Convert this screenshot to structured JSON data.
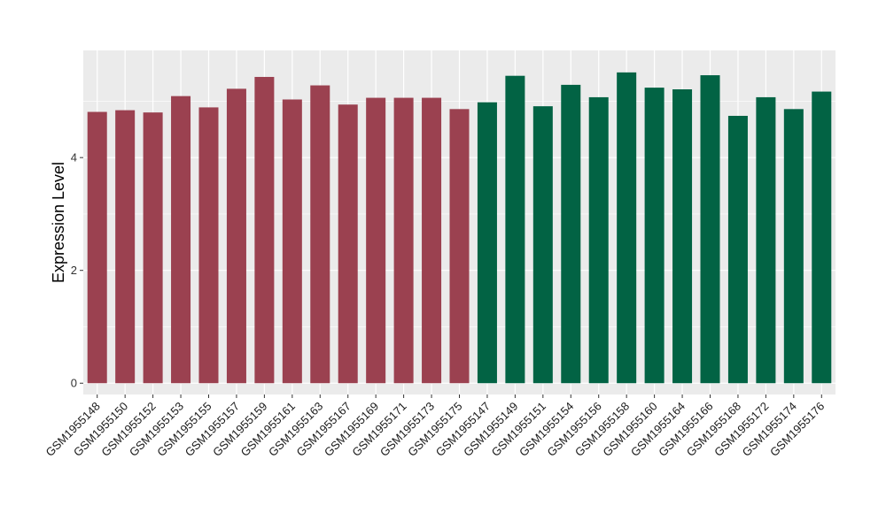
{
  "chart_data": {
    "type": "bar",
    "ylabel": "Expression Level",
    "xlabel": "",
    "ylim": [
      -0.2,
      5.9
    ],
    "yticks": [
      0,
      2,
      4
    ],
    "grid": true,
    "legend": "none",
    "categories": [
      "GSM1955148",
      "GSM1955150",
      "GSM1955152",
      "GSM1955153",
      "GSM1955155",
      "GSM1955157",
      "GSM1955159",
      "GSM1955161",
      "GSM1955163",
      "GSM1955167",
      "GSM1955169",
      "GSM1955171",
      "GSM1955173",
      "GSM1955175",
      "GSM1955147",
      "GSM1955149",
      "GSM1955151",
      "GSM1955154",
      "GSM1955156",
      "GSM1955158",
      "GSM1955160",
      "GSM1955164",
      "GSM1955166",
      "GSM1955168",
      "GSM1955172",
      "GSM1955174",
      "GSM1955176"
    ],
    "values": [
      4.81,
      4.84,
      4.8,
      5.09,
      4.89,
      5.22,
      5.43,
      5.03,
      5.28,
      4.94,
      5.06,
      5.06,
      5.06,
      4.86,
      4.98,
      5.45,
      4.91,
      5.29,
      5.07,
      5.51,
      5.24,
      5.21,
      5.46,
      4.74,
      5.07,
      4.86,
      5.17
    ],
    "group_colors": [
      "#9b4150",
      "#9b4150",
      "#9b4150",
      "#9b4150",
      "#9b4150",
      "#9b4150",
      "#9b4150",
      "#9b4150",
      "#9b4150",
      "#9b4150",
      "#9b4150",
      "#9b4150",
      "#9b4150",
      "#9b4150",
      "#026344",
      "#026344",
      "#026344",
      "#026344",
      "#026344",
      "#026344",
      "#026344",
      "#026344",
      "#026344",
      "#026344",
      "#026344",
      "#026344",
      "#026344"
    ],
    "panel_color": "#ebebeb",
    "grid_color": "#ffffff"
  }
}
